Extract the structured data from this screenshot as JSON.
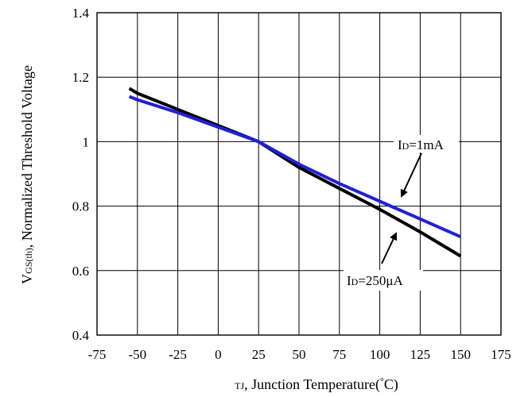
{
  "chart_data": {
    "type": "line",
    "x": [
      -55,
      -50,
      -25,
      0,
      25,
      50,
      75,
      100,
      125,
      150
    ],
    "series": [
      {
        "name": "ID=1mA",
        "color": "#1f1fe0",
        "values": [
          1.14,
          1.13,
          1.09,
          1.045,
          1.0,
          0.93,
          0.87,
          0.815,
          0.76,
          0.705
        ]
      },
      {
        "name": "ID=250μA",
        "color": "#000000",
        "values": [
          1.165,
          1.15,
          1.1,
          1.05,
          1.0,
          0.92,
          0.855,
          0.79,
          0.72,
          0.645
        ]
      }
    ],
    "xlim": [
      -75,
      175
    ],
    "ylim": [
      0.4,
      1.4
    ],
    "xticks": [
      -75,
      -50,
      -25,
      0,
      25,
      50,
      75,
      100,
      125,
      150,
      175
    ],
    "yticks": [
      0.4,
      0.6,
      0.8,
      1.0,
      1.2,
      1.4
    ],
    "xtick_labels": [
      "-75",
      "-50",
      "-25",
      "0",
      "25",
      "50",
      "75",
      "100",
      "125",
      "150",
      "175"
    ],
    "ytick_labels": [
      "0.4",
      "0.6",
      "0.8",
      "1",
      "1.2",
      "1.4"
    ],
    "xlabel": {
      "main_small": "T",
      "sub": "J",
      "rest_a": ", Junction Temperature(",
      "degree": "°",
      "rest_b": "C)"
    },
    "ylabel": {
      "main": "V",
      "sub": "GS(th)",
      "rest": ", Normalized Threshold Voltage"
    },
    "grid": true,
    "annotations": [
      {
        "prefix": "I",
        "sub": "D",
        "suffix": "=1mA"
      },
      {
        "prefix": "I",
        "sub": "D",
        "suffix": "=250μA"
      }
    ]
  }
}
